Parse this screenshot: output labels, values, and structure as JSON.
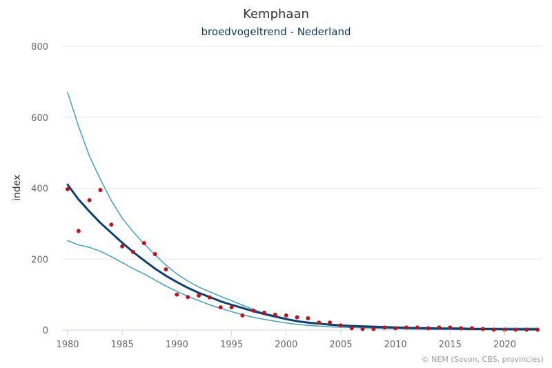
{
  "chart_data": {
    "type": "line",
    "title": "Kemphaan",
    "subtitle": "broedvogeltrend - Nederland",
    "xlabel": "",
    "ylabel": "index",
    "xlim": [
      1980,
      2023
    ],
    "ylim": [
      0,
      800
    ],
    "x_ticks": [
      1980,
      1985,
      1990,
      1995,
      2000,
      2005,
      2010,
      2015,
      2020
    ],
    "y_ticks": [
      0,
      200,
      400,
      600,
      800
    ],
    "grid": "horizontal",
    "legend": "none",
    "credits": "© NEM (Sovon, CBS, provincies)",
    "colors": {
      "trend": "#0b3f6e",
      "confidence": "#3aa0c4",
      "observed": "#c0141b",
      "grid": "#e6e6e6",
      "axis": "#ccd6eb"
    },
    "series": [
      {
        "key": "upper",
        "kind": "line",
        "x": [
          1980,
          1981,
          1982,
          1983,
          1984,
          1985,
          1986,
          1987,
          1988,
          1989,
          1990,
          1991,
          1992,
          1993,
          1994,
          1995,
          1996,
          1997,
          1998,
          1999,
          2000,
          2001,
          2002,
          2003,
          2004,
          2005,
          2006,
          2007,
          2008,
          2009,
          2010,
          2011,
          2012,
          2013,
          2014,
          2015,
          2016,
          2017,
          2018,
          2019,
          2020,
          2021,
          2022,
          2023
        ],
        "values": [
          670,
          575,
          490,
          425,
          365,
          315,
          277,
          243,
          212,
          183,
          158,
          138,
          121,
          108,
          95,
          83,
          70,
          58,
          47,
          40,
          32,
          26,
          21,
          18,
          16,
          14,
          13,
          12,
          11,
          10,
          9,
          8,
          7,
          7,
          6,
          6,
          6,
          5,
          5,
          5,
          5,
          5,
          5,
          5
        ]
      },
      {
        "key": "lower",
        "kind": "line",
        "x": [
          1980,
          1981,
          1982,
          1983,
          1984,
          1985,
          1986,
          1987,
          1988,
          1989,
          1990,
          1991,
          1992,
          1993,
          1994,
          1995,
          1996,
          1997,
          1998,
          1999,
          2000,
          2001,
          2002,
          2003,
          2004,
          2005,
          2006,
          2007,
          2008,
          2009,
          2010,
          2011,
          2012,
          2013,
          2014,
          2015,
          2016,
          2017,
          2018,
          2019,
          2020,
          2021,
          2022,
          2023
        ],
        "values": [
          252,
          240,
          233,
          222,
          207,
          190,
          173,
          158,
          141,
          124,
          109,
          95,
          83,
          71,
          61,
          52,
          43,
          36,
          30,
          25,
          20,
          16,
          13,
          11,
          9,
          8,
          7,
          6,
          5,
          4,
          4,
          3,
          3,
          2,
          2,
          2,
          1,
          1,
          1,
          1,
          1,
          0,
          0,
          0
        ]
      },
      {
        "key": "trend",
        "kind": "line",
        "x": [
          1980,
          1981,
          1982,
          1983,
          1984,
          1985,
          1986,
          1987,
          1988,
          1989,
          1990,
          1991,
          1992,
          1993,
          1994,
          1995,
          1996,
          1997,
          1998,
          1999,
          2000,
          2001,
          2002,
          2003,
          2004,
          2005,
          2006,
          2007,
          2008,
          2009,
          2010,
          2011,
          2012,
          2013,
          2014,
          2015,
          2016,
          2017,
          2018,
          2019,
          2020,
          2021,
          2022,
          2023
        ],
        "values": [
          410,
          368,
          334,
          302,
          274,
          246,
          220,
          196,
          173,
          153,
          135,
          119,
          105,
          93,
          81,
          71,
          62,
          53,
          45,
          38,
          31,
          25,
          21,
          18,
          15,
          13,
          11,
          10,
          9,
          8,
          7,
          6,
          5,
          5,
          4,
          4,
          4,
          3,
          3,
          3,
          2,
          2,
          2,
          2
        ]
      },
      {
        "key": "observed",
        "kind": "scatter",
        "x": [
          1980,
          1981,
          1982,
          1983,
          1984,
          1985,
          1986,
          1987,
          1988,
          1989,
          1990,
          1991,
          1992,
          1993,
          1994,
          1995,
          1996,
          1997,
          1998,
          1999,
          2000,
          2001,
          2002,
          2003,
          2004,
          2005,
          2006,
          2007,
          2008,
          2009,
          2010,
          2011,
          2012,
          2013,
          2014,
          2015,
          2016,
          2017,
          2018,
          2019,
          2020,
          2021,
          2022,
          2023
        ],
        "values": [
          397,
          279,
          366,
          395,
          297,
          236,
          220,
          245,
          214,
          171,
          100,
          93,
          97,
          92,
          64,
          64,
          41,
          55,
          49,
          43,
          41,
          36,
          33,
          21,
          21,
          13,
          5,
          3,
          3,
          7,
          5,
          7,
          7,
          5,
          7,
          7,
          5,
          5,
          3,
          1,
          1,
          1,
          1,
          1
        ]
      }
    ]
  }
}
